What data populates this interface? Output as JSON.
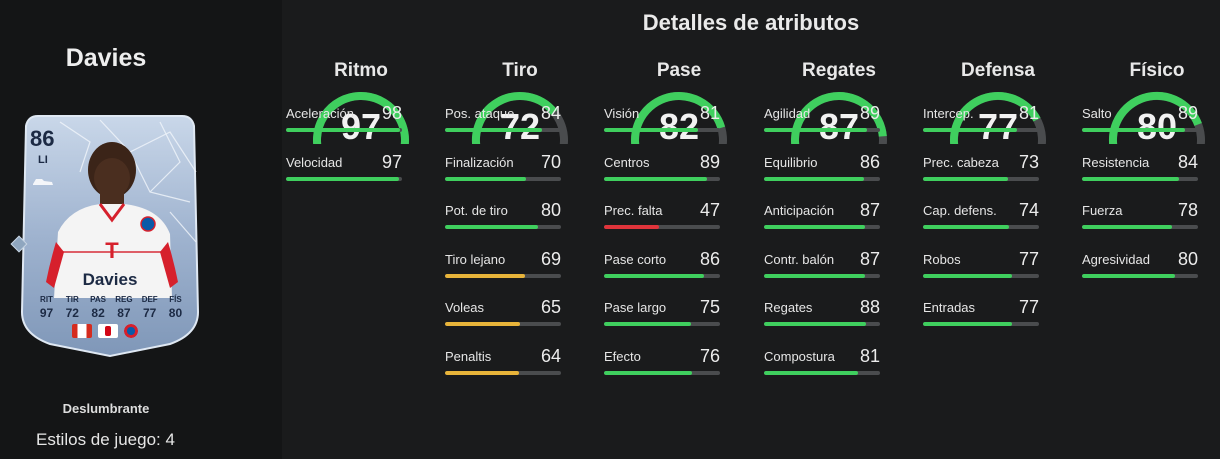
{
  "player": {
    "name": "Davies",
    "rating": "86",
    "position": "LI",
    "card_stat_labels": [
      "RIT",
      "TIR",
      "PAS",
      "REG",
      "DEF",
      "FÍS"
    ],
    "card_stat_values": [
      "97",
      "72",
      "82",
      "87",
      "77",
      "80"
    ],
    "playstyle": "Deslumbrante",
    "playstyles_count": "Estilos de juego: 4"
  },
  "title": "Detalles de atributos",
  "colors": {
    "high": "#3fcf5e",
    "mid": "#e8b43a",
    "low": "#e0343b",
    "track": "#4a4c4e"
  },
  "groups": [
    {
      "title": "Ritmo",
      "value": 97,
      "stats": [
        {
          "label": "Aceleración",
          "value": 98
        },
        {
          "label": "Velocidad",
          "value": 97
        }
      ]
    },
    {
      "title": "Tiro",
      "value": 72,
      "stats": [
        {
          "label": "Pos. ataque",
          "value": 84
        },
        {
          "label": "Finalización",
          "value": 70
        },
        {
          "label": "Pot. de tiro",
          "value": 80
        },
        {
          "label": "Tiro lejano",
          "value": 69
        },
        {
          "label": "Voleas",
          "value": 65
        },
        {
          "label": "Penaltis",
          "value": 64
        }
      ]
    },
    {
      "title": "Pase",
      "value": 82,
      "stats": [
        {
          "label": "Visión",
          "value": 81
        },
        {
          "label": "Centros",
          "value": 89
        },
        {
          "label": "Prec. falta",
          "value": 47
        },
        {
          "label": "Pase corto",
          "value": 86
        },
        {
          "label": "Pase largo",
          "value": 75
        },
        {
          "label": "Efecto",
          "value": 76
        }
      ]
    },
    {
      "title": "Regates",
      "value": 87,
      "stats": [
        {
          "label": "Agilidad",
          "value": 89
        },
        {
          "label": "Equilibrio",
          "value": 86
        },
        {
          "label": "Anticipación",
          "value": 87
        },
        {
          "label": "Contr. balón",
          "value": 87
        },
        {
          "label": "Regates",
          "value": 88
        },
        {
          "label": "Compostura",
          "value": 81
        }
      ]
    },
    {
      "title": "Defensa",
      "value": 77,
      "stats": [
        {
          "label": "Intercep.",
          "value": 81
        },
        {
          "label": "Prec. cabeza",
          "value": 73
        },
        {
          "label": "Cap. defens.",
          "value": 74
        },
        {
          "label": "Robos",
          "value": 77
        },
        {
          "label": "Entradas",
          "value": 77
        }
      ]
    },
    {
      "title": "Físico",
      "value": 80,
      "stats": [
        {
          "label": "Salto",
          "value": 89
        },
        {
          "label": "Resistencia",
          "value": 84
        },
        {
          "label": "Fuerza",
          "value": 78
        },
        {
          "label": "Agresividad",
          "value": 80
        }
      ]
    }
  ]
}
